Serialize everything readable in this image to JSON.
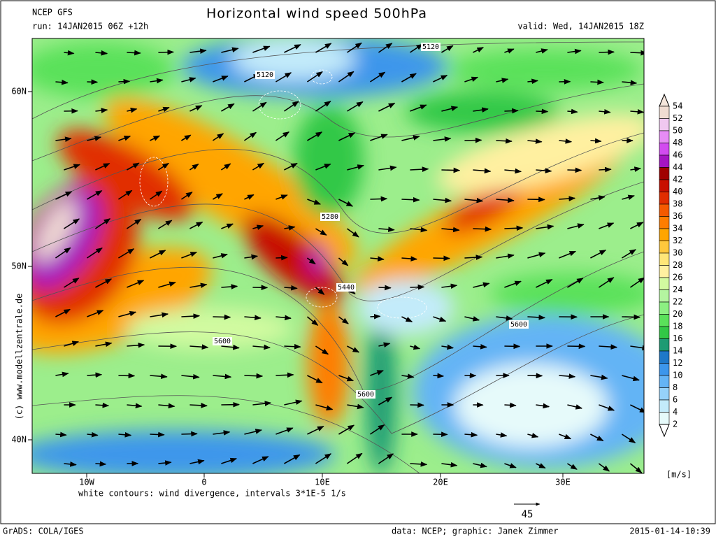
{
  "header": {
    "model": "NCEP GFS",
    "run": "run: 14JAN2015 06Z +12h",
    "title": "Horizontal wind speed 500hPa",
    "valid": "valid: Wed, 14JAN2015 18Z"
  },
  "map": {
    "lat_labels": [
      "60N",
      "50N",
      "40N"
    ],
    "lon_labels": [
      "10W",
      "0",
      "10E",
      "20E",
      "30E"
    ],
    "contour_labels": [
      "5120",
      "5120",
      "5280",
      "5440",
      "5600",
      "5600",
      "5600"
    ],
    "note": "white contours: wind divergence, intervals 3*1E-5 1/s",
    "copyright": "(c) www.modellzentrale.de",
    "vector_scale": "45"
  },
  "colorbar": {
    "unit": "[m/s]",
    "labels": [
      54,
      52,
      50,
      48,
      46,
      44,
      42,
      40,
      38,
      36,
      34,
      32,
      30,
      28,
      26,
      24,
      22,
      20,
      18,
      16,
      14,
      12,
      10,
      8,
      6,
      4,
      2
    ],
    "over_color": "#f5e6dc",
    "under_color": "#ffffff",
    "bin_colors": [
      "#f0dcd2",
      "#f0c8f0",
      "#e68cf5",
      "#d24bf0",
      "#a514c3",
      "#a00000",
      "#c80f00",
      "#e12d00",
      "#f55a00",
      "#ff7d00",
      "#ffa500",
      "#ffc83c",
      "#ffe678",
      "#fff0a0",
      "#d2faa0",
      "#b4f5a0",
      "#8cf082",
      "#5ae15a",
      "#32c846",
      "#1e9b73",
      "#1e78c8",
      "#3c96eb",
      "#64b4f5",
      "#96d2fa",
      "#c3ebfa",
      "#e6fafa"
    ]
  },
  "footer": {
    "software": "GrADS: COLA/IGES",
    "credit": "data: NCEP; graphic: Janek Zimmer",
    "timestamp": "2015-01-14-10:39"
  }
}
